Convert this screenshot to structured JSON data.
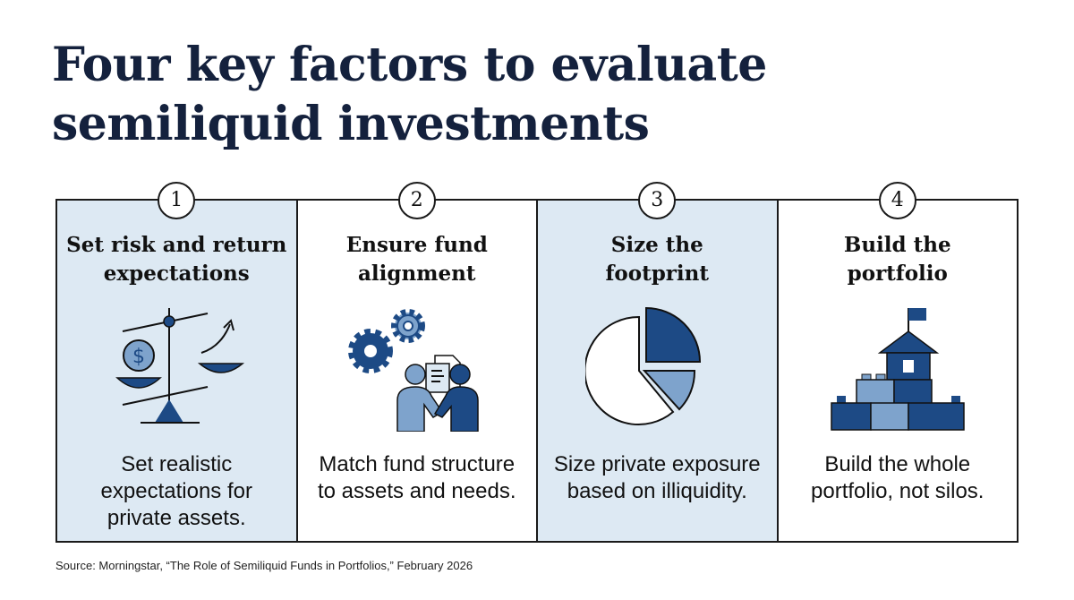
{
  "title": {
    "line1": "Four key factors to evaluate",
    "line2": "semiliquid investments"
  },
  "colors": {
    "navy": "#1d4a85",
    "mid_blue": "#7ea3cc",
    "light_blue": "#dde9f3",
    "title": "#14213d"
  },
  "factors": [
    {
      "number": "1",
      "heading_line1": "Set risk and return",
      "heading_line2": "expectations",
      "icon": "balance-scale-icon",
      "desc_line1": "Set realistic",
      "desc_line2": "expectations for",
      "desc_line3": "private assets."
    },
    {
      "number": "2",
      "heading_line1": "Ensure fund",
      "heading_line2": "alignment",
      "icon": "gears-handshake-icon",
      "desc_line1": "Match fund structure",
      "desc_line2": "to assets and needs."
    },
    {
      "number": "3",
      "heading_line1": "Size the",
      "heading_line2": "footprint",
      "icon": "pie-chart-icon",
      "desc_line1": "Size private exposure",
      "desc_line2": "based on illiquidity."
    },
    {
      "number": "4",
      "heading_line1": "Build the",
      "heading_line2": "portfolio",
      "icon": "building-blocks-castle-icon",
      "desc_line1": "Build the whole",
      "desc_line2": "portfolio, not silos."
    }
  ],
  "source": "Source: Morningstar, “The Role of Semiliquid Funds in Portfolios,” February 2026"
}
